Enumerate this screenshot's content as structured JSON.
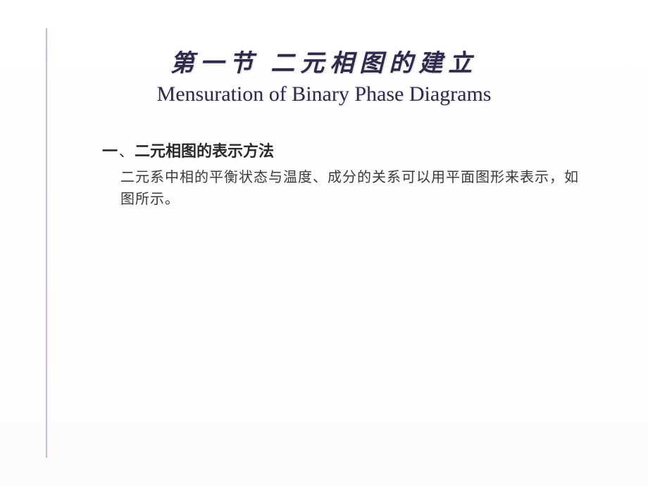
{
  "slide": {
    "title_cn": "第一节 二元相图的建立",
    "title_en": "Mensuration of Binary Phase Diagrams",
    "section": {
      "number": "一",
      "separator": "、",
      "heading": "二元相图的表示方法",
      "body": "二元系中相的平衡状态与温度、成分的关系可以用平面图形来表示，如图所示。"
    },
    "colors": {
      "title_color": "#2d2a4a",
      "accent_line": "#c5b8d8",
      "text_color": "#3a3a3a",
      "background": "#ffffff"
    },
    "typography": {
      "title_cn_fontsize": 34,
      "title_en_fontsize": 30,
      "heading_fontsize": 22,
      "body_fontsize": 20
    }
  }
}
